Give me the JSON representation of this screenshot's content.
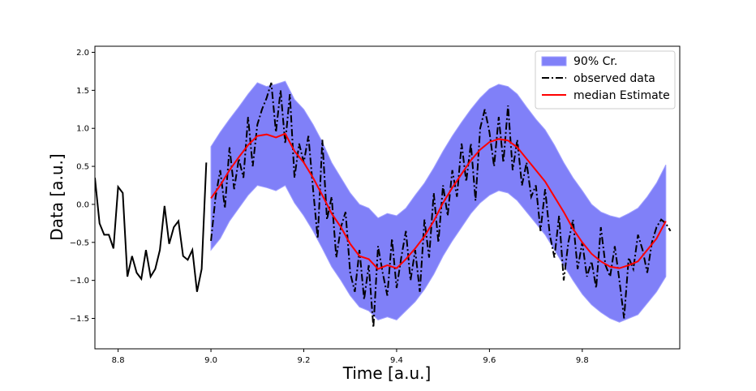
{
  "chart_data": {
    "type": "line",
    "xlabel": "Time [a.u.]",
    "ylabel": "Data [a.u.]",
    "xlim": [
      8.75,
      10.01
    ],
    "ylim": [
      -1.9,
      2.08
    ],
    "xticks": [
      8.8,
      {
        "value": 9.0,
        "label": "9.0"
      },
      9.2,
      9.4,
      9.6,
      9.8
    ],
    "yticks": [
      {
        "value": -1.5,
        "label": "−1.5"
      },
      {
        "value": -1.0,
        "label": "−1.0"
      },
      {
        "value": -0.5,
        "label": "−0.5"
      },
      {
        "value": 0.0,
        "label": "0.0"
      },
      0.5,
      {
        "value": 1.0,
        "label": "1.0"
      },
      1.5,
      {
        "value": 2.0,
        "label": "2.0"
      }
    ],
    "legend": "upper right",
    "series": [
      {
        "type": "band",
        "name": "90% Cr.",
        "color": "#8080f8",
        "x": [
          9.0,
          9.02,
          9.04,
          9.06,
          9.08,
          9.1,
          9.12,
          9.14,
          9.16,
          9.18,
          9.2,
          9.22,
          9.24,
          9.26,
          9.28,
          9.3,
          9.32,
          9.34,
          9.36,
          9.38,
          9.4,
          9.42,
          9.44,
          9.46,
          9.48,
          9.5,
          9.52,
          9.54,
          9.56,
          9.58,
          9.6,
          9.62,
          9.64,
          9.66,
          9.68,
          9.7,
          9.72,
          9.74,
          9.76,
          9.78,
          9.8,
          9.82,
          9.84,
          9.86,
          9.88,
          9.9,
          9.92,
          9.94,
          9.96,
          9.98
        ],
        "upper": [
          0.76,
          0.95,
          1.12,
          1.28,
          1.45,
          1.6,
          1.55,
          1.58,
          1.62,
          1.38,
          1.25,
          1.05,
          0.82,
          0.55,
          0.35,
          0.15,
          0.0,
          -0.05,
          -0.18,
          -0.12,
          -0.15,
          -0.05,
          0.12,
          0.28,
          0.48,
          0.7,
          0.9,
          1.08,
          1.25,
          1.4,
          1.52,
          1.58,
          1.55,
          1.45,
          1.28,
          1.12,
          0.98,
          0.78,
          0.55,
          0.35,
          0.18,
          0.0,
          -0.1,
          -0.15,
          -0.18,
          -0.12,
          -0.05,
          0.1,
          0.28,
          0.52
        ],
        "lower": [
          -0.6,
          -0.45,
          -0.22,
          -0.05,
          0.12,
          0.25,
          0.22,
          0.18,
          0.25,
          0.02,
          -0.15,
          -0.35,
          -0.58,
          -0.82,
          -1.0,
          -1.2,
          -1.35,
          -1.4,
          -1.52,
          -1.48,
          -1.52,
          -1.4,
          -1.28,
          -1.12,
          -0.92,
          -0.68,
          -0.48,
          -0.3,
          -0.12,
          0.02,
          0.12,
          0.18,
          0.15,
          0.05,
          -0.1,
          -0.25,
          -0.4,
          -0.6,
          -0.8,
          -1.0,
          -1.18,
          -1.32,
          -1.42,
          -1.5,
          -1.55,
          -1.5,
          -1.45,
          -1.3,
          -1.15,
          -0.95
        ]
      },
      {
        "type": "line",
        "color": "#000000",
        "dash": "solid",
        "x": [
          8.75,
          8.76,
          8.77,
          8.78,
          8.79,
          8.8,
          8.81,
          8.82,
          8.83,
          8.84,
          8.85,
          8.86,
          8.87,
          8.88,
          8.89,
          8.9,
          8.91,
          8.92,
          8.93,
          8.94,
          8.95,
          8.96,
          8.97,
          8.98,
          8.99
        ],
        "values": [
          0.35,
          -0.25,
          -0.4,
          -0.4,
          -0.58,
          0.23,
          0.15,
          -0.95,
          -0.68,
          -0.9,
          -0.98,
          -0.6,
          -0.95,
          -0.85,
          -0.6,
          -0.02,
          -0.52,
          -0.3,
          -0.22,
          -0.68,
          -0.73,
          -0.6,
          -1.15,
          -0.85,
          0.55
        ]
      },
      {
        "type": "line",
        "name": "observed data",
        "color": "#000000",
        "dash": "dashdot",
        "x": [
          9.0,
          9.01,
          9.02,
          9.03,
          9.04,
          9.05,
          9.06,
          9.07,
          9.08,
          9.09,
          9.1,
          9.11,
          9.12,
          9.13,
          9.14,
          9.15,
          9.16,
          9.17,
          9.18,
          9.19,
          9.2,
          9.21,
          9.22,
          9.23,
          9.24,
          9.25,
          9.26,
          9.27,
          9.28,
          9.29,
          9.3,
          9.31,
          9.32,
          9.33,
          9.34,
          9.35,
          9.36,
          9.37,
          9.38,
          9.39,
          9.4,
          9.41,
          9.42,
          9.43,
          9.44,
          9.45,
          9.46,
          9.47,
          9.48,
          9.49,
          9.5,
          9.51,
          9.52,
          9.53,
          9.54,
          9.55,
          9.56,
          9.57,
          9.58,
          9.59,
          9.6,
          9.61,
          9.62,
          9.63,
          9.64,
          9.65,
          9.66,
          9.67,
          9.68,
          9.69,
          9.7,
          9.71,
          9.72,
          9.73,
          9.74,
          9.75,
          9.76,
          9.77,
          9.78,
          9.79,
          9.8,
          9.81,
          9.82,
          9.83,
          9.84,
          9.85,
          9.86,
          9.87,
          9.88,
          9.89,
          9.9,
          9.91,
          9.92,
          9.93,
          9.94,
          9.95,
          9.96,
          9.97,
          9.98,
          9.99
        ],
        "values": [
          -0.48,
          0.1,
          0.45,
          -0.05,
          0.75,
          0.2,
          0.6,
          0.35,
          1.15,
          0.5,
          1.05,
          1.25,
          1.4,
          1.6,
          0.95,
          1.5,
          0.8,
          1.45,
          0.35,
          0.8,
          0.55,
          0.9,
          0.2,
          -0.45,
          0.85,
          -0.2,
          0.1,
          -0.7,
          -0.3,
          -0.1,
          -0.9,
          -1.15,
          -0.6,
          -1.25,
          -0.8,
          -1.62,
          -0.55,
          -0.9,
          -1.2,
          -0.45,
          -1.1,
          -0.7,
          -0.35,
          -1.0,
          -0.6,
          -1.15,
          -0.2,
          -0.7,
          0.15,
          -0.5,
          0.25,
          -0.15,
          0.45,
          0.1,
          0.8,
          0.3,
          0.8,
          0.05,
          1.0,
          1.25,
          0.95,
          0.5,
          1.15,
          0.55,
          1.3,
          0.45,
          0.85,
          0.25,
          0.55,
          0.1,
          0.25,
          -0.35,
          0.2,
          -0.4,
          -0.7,
          -0.15,
          -1.0,
          -0.5,
          -0.2,
          -0.85,
          -0.5,
          -0.95,
          -0.75,
          -1.1,
          -0.3,
          -0.8,
          -0.95,
          -0.55,
          -1.0,
          -1.5,
          -0.7,
          -0.85,
          -0.4,
          -0.6,
          -0.9,
          -0.5,
          -0.3,
          -0.2,
          -0.25,
          -0.35
        ]
      },
      {
        "type": "line",
        "name": "median Estimate",
        "color": "#ff0000",
        "dash": "solid",
        "x": [
          9.0,
          9.02,
          9.04,
          9.06,
          9.08,
          9.1,
          9.12,
          9.14,
          9.16,
          9.18,
          9.2,
          9.22,
          9.24,
          9.26,
          9.28,
          9.3,
          9.32,
          9.34,
          9.36,
          9.38,
          9.4,
          9.42,
          9.44,
          9.46,
          9.48,
          9.5,
          9.52,
          9.54,
          9.56,
          9.58,
          9.6,
          9.62,
          9.64,
          9.66,
          9.68,
          9.7,
          9.72,
          9.74,
          9.76,
          9.78,
          9.8,
          9.82,
          9.84,
          9.86,
          9.88,
          9.9,
          9.92,
          9.94,
          9.96,
          9.98
        ],
        "values": [
          0.08,
          0.25,
          0.45,
          0.62,
          0.78,
          0.9,
          0.92,
          0.88,
          0.93,
          0.7,
          0.55,
          0.35,
          0.12,
          -0.12,
          -0.3,
          -0.52,
          -0.68,
          -0.72,
          -0.85,
          -0.8,
          -0.84,
          -0.72,
          -0.58,
          -0.42,
          -0.22,
          0.02,
          0.22,
          0.4,
          0.58,
          0.72,
          0.82,
          0.86,
          0.84,
          0.75,
          0.6,
          0.45,
          0.3,
          0.1,
          -0.1,
          -0.32,
          -0.5,
          -0.65,
          -0.75,
          -0.82,
          -0.84,
          -0.8,
          -0.75,
          -0.6,
          -0.45,
          -0.22
        ]
      }
    ]
  }
}
